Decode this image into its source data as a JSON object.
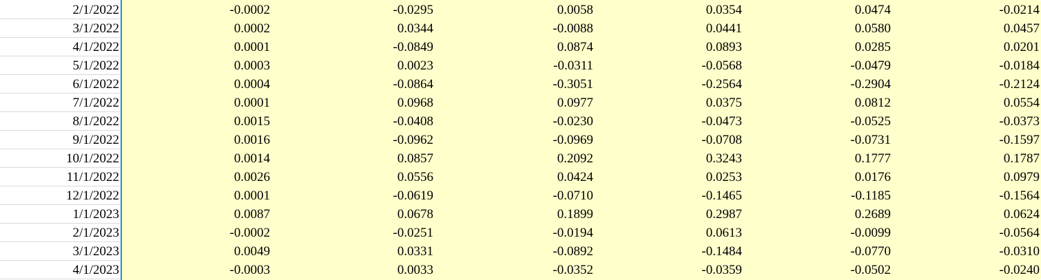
{
  "sheet": {
    "rows": [
      {
        "date": "2/1/2022",
        "values": [
          "-0.0002",
          "-0.0295",
          "0.0058",
          "0.0354",
          "0.0474",
          "-0.0214"
        ]
      },
      {
        "date": "3/1/2022",
        "values": [
          "0.0002",
          "0.0344",
          "-0.0088",
          "0.0441",
          "0.0580",
          "0.0457"
        ]
      },
      {
        "date": "4/1/2022",
        "values": [
          "0.0001",
          "-0.0849",
          "0.0874",
          "0.0893",
          "0.0285",
          "0.0201"
        ]
      },
      {
        "date": "5/1/2022",
        "values": [
          "0.0003",
          "0.0023",
          "-0.0311",
          "-0.0568",
          "-0.0479",
          "-0.0184"
        ]
      },
      {
        "date": "6/1/2022",
        "values": [
          "0.0004",
          "-0.0864",
          "-0.3051",
          "-0.2564",
          "-0.2904",
          "-0.2124"
        ]
      },
      {
        "date": "7/1/2022",
        "values": [
          "0.0001",
          "0.0968",
          "0.0977",
          "0.0375",
          "0.0812",
          "0.0554"
        ]
      },
      {
        "date": "8/1/2022",
        "values": [
          "0.0015",
          "-0.0408",
          "-0.0230",
          "-0.0473",
          "-0.0525",
          "-0.0373"
        ]
      },
      {
        "date": "9/1/2022",
        "values": [
          "0.0016",
          "-0.0962",
          "-0.0969",
          "-0.0708",
          "-0.0731",
          "-0.1597"
        ]
      },
      {
        "date": "10/1/2022",
        "values": [
          "0.0014",
          "0.0857",
          "0.2092",
          "0.3243",
          "0.1777",
          "0.1787"
        ]
      },
      {
        "date": "11/1/2022",
        "values": [
          "0.0026",
          "0.0556",
          "0.0424",
          "0.0253",
          "0.0176",
          "0.0979"
        ]
      },
      {
        "date": "12/1/2022",
        "values": [
          "0.0001",
          "-0.0619",
          "-0.0710",
          "-0.1465",
          "-0.1185",
          "-0.1564"
        ]
      },
      {
        "date": "1/1/2023",
        "values": [
          "0.0087",
          "0.0678",
          "0.1899",
          "0.2987",
          "0.2689",
          "0.0624"
        ]
      },
      {
        "date": "2/1/2023",
        "values": [
          "-0.0002",
          "-0.0251",
          "-0.0194",
          "0.0613",
          "-0.0099",
          "-0.0564"
        ]
      },
      {
        "date": "3/1/2023",
        "values": [
          "0.0049",
          "0.0331",
          "-0.0892",
          "-0.1484",
          "-0.0770",
          "-0.0310"
        ]
      },
      {
        "date": "4/1/2023",
        "values": [
          "-0.0003",
          "0.0033",
          "-0.0352",
          "-0.0359",
          "-0.0502",
          "-0.0240"
        ]
      }
    ]
  },
  "colors": {
    "cell_fill": "#ffffcc",
    "selection_border": "#1e8fc8",
    "gridline": "#d9d9d9"
  }
}
